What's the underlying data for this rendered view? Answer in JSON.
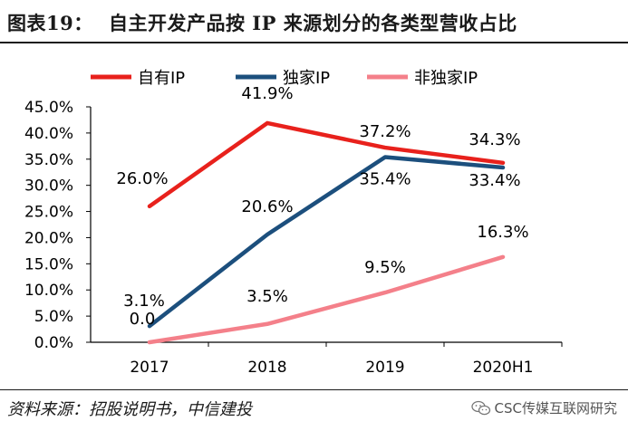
{
  "header": {
    "label": "图表19：",
    "title": "自主开发产品按 IP 来源划分的各类型营收占比"
  },
  "footer": {
    "source": "资料来源：招股说明书，中信建投",
    "watermark": "CSC传媒互联网研究",
    "watermark_icon": "wechat-icon"
  },
  "colors": {
    "series_0": "#e8211c",
    "series_1": "#1c4f7d",
    "series_2": "#f4808a",
    "axis": "#000000",
    "text": "#000000"
  },
  "chart_data": {
    "type": "line",
    "title": "自主开发产品按 IP 来源划分的各类型营收占比",
    "xlabel": "",
    "ylabel": "",
    "categories": [
      "2017",
      "2018",
      "2019",
      "2020H1"
    ],
    "ylim": [
      0,
      45
    ],
    "yticks": [
      "0.0%",
      "5.0%",
      "10.0%",
      "15.0%",
      "20.0%",
      "25.0%",
      "30.0%",
      "35.0%",
      "40.0%",
      "45.0%"
    ],
    "grid": false,
    "legend": "top-center",
    "series": [
      {
        "name": "自有IP",
        "values": [
          26.0,
          41.9,
          37.2,
          34.3
        ],
        "labels": [
          "26.0%",
          "41.9%",
          "37.2%",
          "34.3%"
        ]
      },
      {
        "name": "独家IP",
        "values": [
          3.1,
          20.6,
          35.4,
          33.4
        ],
        "labels": [
          "3.1%",
          "20.6%",
          "35.4%",
          "33.4%"
        ]
      },
      {
        "name": "非独家IP",
        "values": [
          0.0,
          3.5,
          9.5,
          16.3
        ],
        "labels": [
          "0.0",
          "3.5%",
          "9.5%",
          "16.3%"
        ]
      }
    ]
  }
}
